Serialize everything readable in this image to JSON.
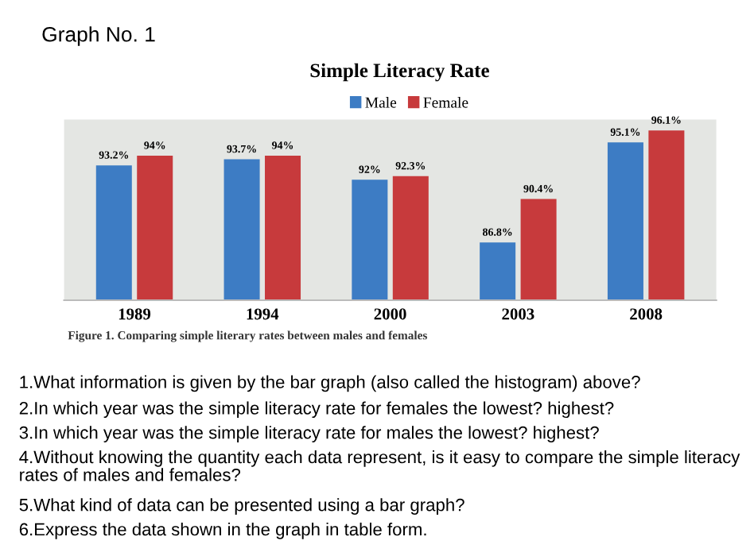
{
  "chart_data": {
    "type": "bar",
    "title": "Simple Literacy Rate",
    "categories": [
      "1989",
      "1994",
      "2000",
      "2003",
      "2008"
    ],
    "series": [
      {
        "name": "Male",
        "color": "#3d7cc4",
        "values": [
          93.2,
          93.7,
          92,
          86.8,
          95.1
        ],
        "value_labels": [
          "93.2%",
          "93.7%",
          "92%",
          "86.8%",
          "95.1%"
        ]
      },
      {
        "name": "Female",
        "color": "#c73a3c",
        "values": [
          94,
          94,
          92.3,
          90.4,
          96.1
        ],
        "value_labels": [
          "94%",
          "94%",
          "92.3%",
          "90.4%",
          "96.1%"
        ]
      }
    ],
    "ylim": [
      82,
      97
    ],
    "tick_labels": "x",
    "legend": "top",
    "grid": false,
    "annotations": [
      "Graph No. 1",
      "Figure 1. Comparing simple literary rates between males and females",
      "1.What information is given by the bar graph (also called the histogram) above?",
      "2.In which year was the simple literacy rate for females the lowest? highest?",
      "3.In which year was the simple literacy rate for males the lowest? highest?",
      "4.Without knowing the quantity each data represent, is it easy to compare the simple literacy rates of males and females?",
      "5.What kind of data can be presented using a bar graph?",
      "6.Express the data shown in the graph in table form."
    ]
  }
}
